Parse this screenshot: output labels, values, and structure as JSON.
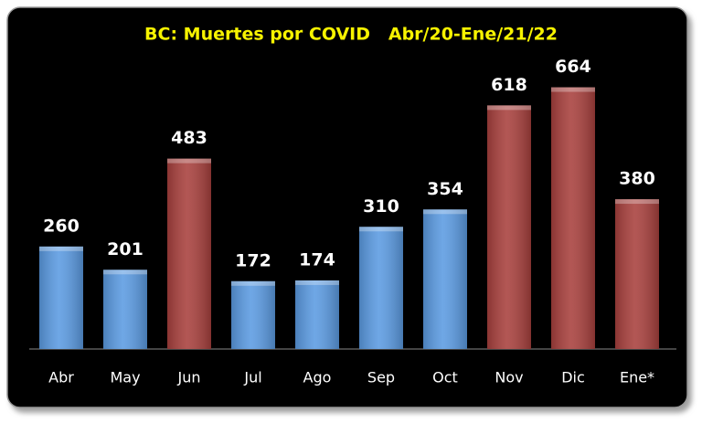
{
  "chart_data": {
    "type": "bar",
    "title": "BC: Muertes por COVID   Abr/20-Ene/21/22",
    "categories": [
      "Abr",
      "May",
      "Jun",
      "Jul",
      "Ago",
      "Sep",
      "Oct",
      "Nov",
      "Dic",
      "Ene*"
    ],
    "values": [
      260,
      201,
      483,
      172,
      174,
      310,
      354,
      618,
      664,
      380
    ],
    "colors": [
      "#5b9be2",
      "#5b9be2",
      "#a8403d",
      "#5b9be2",
      "#5b9be2",
      "#5b9be2",
      "#5b9be2",
      "#a8403d",
      "#a8403d",
      "#a8403d"
    ],
    "ylim": [
      0,
      700
    ]
  }
}
